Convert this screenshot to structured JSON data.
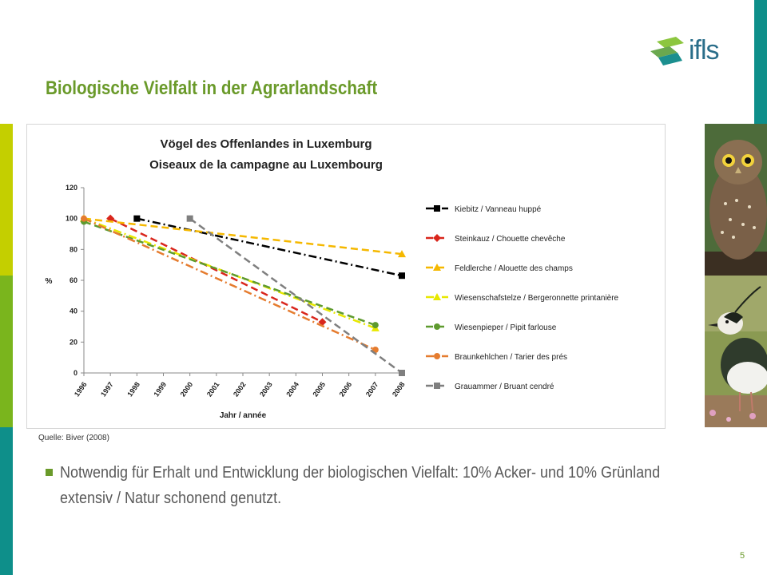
{
  "slide": {
    "title": "Biologische Vielfalt in der Agrarlandschaft",
    "source": "Quelle: Biver (2008)",
    "bullet": "Notwendig für Erhalt und Entwicklung der biologischen Vielfalt: 10% Acker- und 10% Grünland extensiv / Natur schonend genutzt.",
    "page_number": "5",
    "logo_text": "ifls"
  },
  "colors": {
    "stripe_yellow": "#c4cf00",
    "stripe_green": "#7ab51d",
    "stripe_teal": "#0e8f8a",
    "title": "#6a9a2a"
  },
  "photos": [
    {
      "subject": "Steinkauz (owl)"
    },
    {
      "subject": "Kiebitz (lapwing)"
    }
  ],
  "chart_data": {
    "type": "line",
    "title": "Vögel des Offenlandes in Luxemburg",
    "subtitle": "Oiseaux de la campagne au Luxembourg",
    "xlabel": "Jahr / année",
    "ylabel": "%",
    "ylim": [
      0,
      120
    ],
    "yticks": [
      0,
      20,
      40,
      60,
      80,
      100,
      120
    ],
    "x": [
      "1996",
      "1997",
      "1998",
      "1999",
      "2000",
      "2001",
      "2002",
      "2003",
      "2004",
      "2005",
      "2006",
      "2007",
      "2008"
    ],
    "grid": false,
    "legend_position": "right",
    "series": [
      {
        "name": "Kiebitz / Vanneau huppé",
        "color": "#000000",
        "dash": "dashdot",
        "marker": "square",
        "points": [
          [
            1998,
            100
          ],
          [
            2008,
            63
          ]
        ]
      },
      {
        "name": "Steinkauz / Chouette chevêche",
        "color": "#d9261c",
        "dash": "dash",
        "marker": "diamond",
        "points": [
          [
            1997,
            100
          ],
          [
            2005,
            33
          ]
        ]
      },
      {
        "name": "Feldlerche / Alouette des champs",
        "color": "#f5b800",
        "dash": "dash",
        "marker": "triangle",
        "points": [
          [
            1996,
            100
          ],
          [
            2008,
            77
          ]
        ]
      },
      {
        "name": "Wiesenschafstelze / Bergeronnette printanière",
        "color": "#e8e800",
        "dash": "dashdot",
        "marker": "triangle",
        "points": [
          [
            1996,
            100
          ],
          [
            2007,
            29
          ]
        ]
      },
      {
        "name": "Wiesenpieper / Pipit farlouse",
        "color": "#5e9a2e",
        "dash": "dash",
        "marker": "circle",
        "points": [
          [
            1996,
            98
          ],
          [
            2007,
            31
          ]
        ]
      },
      {
        "name": "Braunkehlchen / Tarier des prés",
        "color": "#e57c2f",
        "dash": "dashdot",
        "marker": "circle",
        "points": [
          [
            1996,
            100
          ],
          [
            2007,
            15
          ]
        ]
      },
      {
        "name": "Grauammer / Bruant cendré",
        "color": "#7f7f7f",
        "dash": "dash",
        "marker": "square",
        "points": [
          [
            2000,
            100
          ],
          [
            2008,
            0
          ]
        ]
      }
    ]
  }
}
